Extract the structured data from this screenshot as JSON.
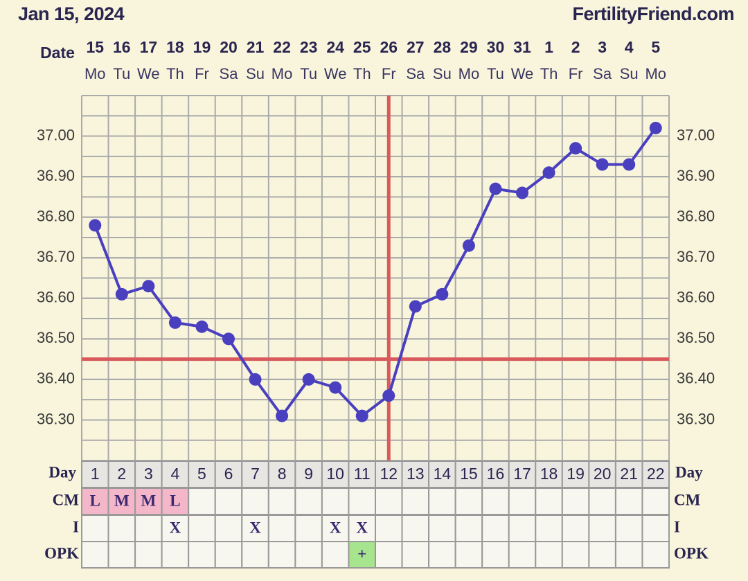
{
  "chart_data": {
    "type": "line",
    "title": "Jan 15, 2024",
    "site": "FertilityFriend.com",
    "row_labels": {
      "date": "Date",
      "day": "Day",
      "cm": "CM",
      "intercourse": "I",
      "opk": "OPK"
    },
    "dates": [
      "15",
      "16",
      "17",
      "18",
      "19",
      "20",
      "21",
      "22",
      "23",
      "24",
      "25",
      "26",
      "27",
      "28",
      "29",
      "30",
      "31",
      "1",
      "2",
      "3",
      "4",
      "5"
    ],
    "weekdays": [
      "Mo",
      "Tu",
      "We",
      "Th",
      "Fr",
      "Sa",
      "Su",
      "Mo",
      "Tu",
      "We",
      "Th",
      "Fr",
      "Sa",
      "Su",
      "Mo",
      "Tu",
      "We",
      "Th",
      "Fr",
      "Sa",
      "Su",
      "Mo"
    ],
    "categories": [
      1,
      2,
      3,
      4,
      5,
      6,
      7,
      8,
      9,
      10,
      11,
      12,
      13,
      14,
      15,
      16,
      17,
      18,
      19,
      20,
      21,
      22
    ],
    "values": [
      36.78,
      36.61,
      36.63,
      36.54,
      36.53,
      36.5,
      36.4,
      36.31,
      36.4,
      36.38,
      36.31,
      36.36,
      36.58,
      36.61,
      36.73,
      36.87,
      36.86,
      36.91,
      36.97,
      36.93,
      36.93,
      37.02
    ],
    "color": "#4a3fbf",
    "coverline": 36.45,
    "ovulation_day": 12,
    "marker_color": "#d85a5c",
    "cm": [
      "L",
      "M",
      "M",
      "L",
      null,
      null,
      null,
      null,
      null,
      null,
      null,
      null,
      null,
      null,
      null,
      null,
      null,
      null,
      null,
      null,
      null,
      null
    ],
    "cm_color": "#f4b6c9",
    "intercourse": [
      null,
      null,
      null,
      "X",
      null,
      null,
      "X",
      null,
      null,
      "X",
      "X",
      null,
      null,
      null,
      null,
      null,
      null,
      null,
      null,
      null,
      null,
      null
    ],
    "opk": [
      null,
      null,
      null,
      null,
      null,
      null,
      null,
      null,
      null,
      null,
      "+",
      null,
      null,
      null,
      null,
      null,
      null,
      null,
      null,
      null,
      null,
      null
    ],
    "opk_color": "#a6e48e",
    "ylim": [
      36.2,
      37.1
    ],
    "yticks": [
      {
        "value": 36.3,
        "label": "36.30"
      },
      {
        "value": 36.4,
        "label": "36.40"
      },
      {
        "value": 36.5,
        "label": "36.50"
      },
      {
        "value": 36.6,
        "label": "36.60"
      },
      {
        "value": 36.7,
        "label": "36.70"
      },
      {
        "value": 36.8,
        "label": "36.80"
      },
      {
        "value": 36.9,
        "label": "36.90"
      },
      {
        "value": 37.0,
        "label": "37.00"
      }
    ],
    "grid": true
  }
}
